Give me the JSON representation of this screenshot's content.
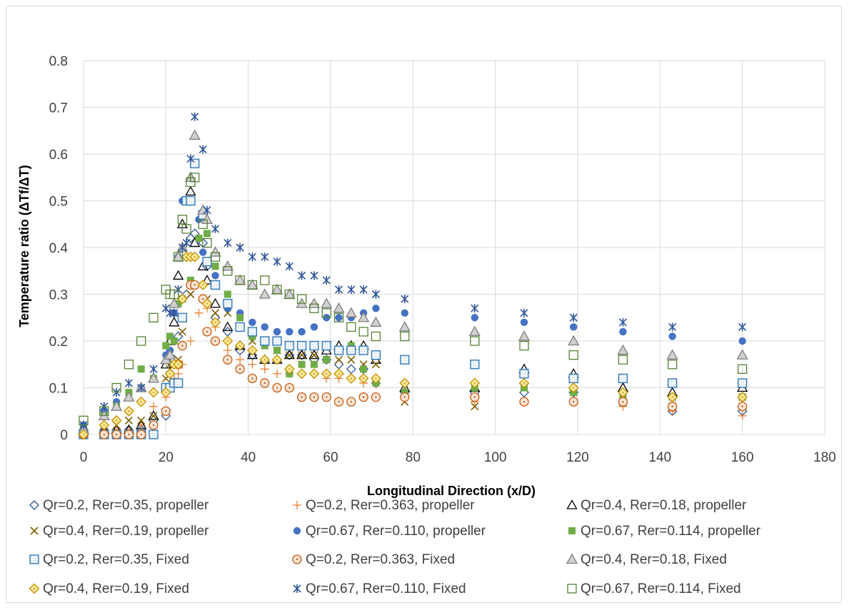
{
  "chart_data": {
    "type": "scatter",
    "title": "",
    "xlabel": "Longitudinal Direction (x/D)",
    "ylabel": "Temperature ratio (ΔTf/ΔT)",
    "xlim": [
      0,
      180
    ],
    "ylim": [
      0,
      0.8
    ],
    "x_ticks": [
      "0",
      "20",
      "40",
      "60",
      "80",
      "100",
      "120",
      "140",
      "160",
      "180"
    ],
    "y_ticks": [
      "0",
      "0.1",
      "0.2",
      "0.3",
      "0.4",
      "0.5",
      "0.6",
      "0.7",
      "0.8"
    ],
    "grid": true,
    "legend_position": "bottom",
    "series": [
      {
        "name": "Qr=0.2, Rer=0.35, propeller",
        "marker": "diamond-open",
        "color": "#2f5597",
        "x": [
          0,
          5,
          8,
          11,
          14,
          17,
          20,
          21,
          22,
          23,
          25,
          26,
          27,
          29,
          30,
          32,
          35,
          38,
          41,
          44,
          47,
          50,
          53,
          56,
          59,
          62,
          65,
          68,
          71,
          78,
          95,
          107,
          119,
          131,
          143,
          160
        ],
        "y": [
          0.01,
          0.01,
          0.01,
          0.01,
          0.01,
          0.03,
          0.04,
          0.1,
          0.16,
          0.21,
          0.3,
          0.42,
          0.43,
          0.41,
          0.36,
          0.25,
          0.22,
          0.18,
          0.17,
          0.16,
          0.16,
          0.17,
          0.17,
          0.16,
          0.16,
          0.15,
          0.14,
          0.14,
          0.11,
          0.09,
          0.09,
          0.09,
          0.09,
          0.07,
          0.05,
          0.05
        ]
      },
      {
        "name": "Q=0.2, Rer=0.363, propeller",
        "marker": "plus",
        "color": "#ed7d31",
        "x": [
          0,
          5,
          8,
          11,
          14,
          17,
          20,
          21,
          22,
          23,
          24,
          26,
          28,
          30,
          32,
          35,
          38,
          41,
          44,
          47,
          50,
          53,
          56,
          59,
          62,
          65,
          68,
          71,
          78,
          95,
          107,
          119,
          131,
          143,
          160
        ],
        "y": [
          0.01,
          0.01,
          0.01,
          0.01,
          0.02,
          0.06,
          0.08,
          0.1,
          0.12,
          0.13,
          0.15,
          0.2,
          0.26,
          0.27,
          0.23,
          0.18,
          0.16,
          0.15,
          0.14,
          0.13,
          0.13,
          0.13,
          0.13,
          0.12,
          0.12,
          0.12,
          0.11,
          0.11,
          0.08,
          0.07,
          0.07,
          0.07,
          0.06,
          0.05,
          0.04
        ]
      },
      {
        "name": "Qr=0.4, Rer=0.18, propeller",
        "marker": "triangle-open",
        "color": "#000000",
        "x": [
          0,
          5,
          8,
          11,
          14,
          17,
          20,
          21,
          22,
          23,
          24,
          26,
          27,
          29,
          30,
          32,
          35,
          38,
          41,
          44,
          47,
          50,
          53,
          56,
          59,
          62,
          65,
          68,
          71,
          78,
          95,
          107,
          119,
          131,
          143,
          160
        ],
        "y": [
          0.01,
          0.01,
          0.01,
          0.01,
          0.02,
          0.04,
          0.15,
          0.2,
          0.24,
          0.34,
          0.45,
          0.52,
          0.41,
          0.36,
          0.33,
          0.28,
          0.23,
          0.19,
          0.17,
          0.16,
          0.16,
          0.17,
          0.17,
          0.17,
          0.18,
          0.19,
          0.19,
          0.19,
          0.16,
          0.1,
          0.1,
          0.14,
          0.13,
          0.1,
          0.09,
          0.1
        ]
      },
      {
        "name": "Qr=0.4, Rer=0.19, propeller",
        "marker": "x",
        "color": "#7f6000",
        "x": [
          0,
          5,
          8,
          11,
          14,
          17,
          20,
          21,
          22,
          23,
          24,
          26,
          28,
          30,
          32,
          35,
          38,
          41,
          44,
          47,
          50,
          53,
          56,
          59,
          62,
          65,
          68,
          71,
          78,
          95,
          107,
          119,
          131,
          143,
          160
        ],
        "y": [
          0.01,
          0.01,
          0.02,
          0.03,
          0.03,
          0.04,
          0.12,
          0.14,
          0.15,
          0.16,
          0.22,
          0.3,
          0.32,
          0.29,
          0.26,
          0.26,
          0.23,
          0.2,
          0.19,
          0.18,
          0.17,
          0.17,
          0.17,
          0.16,
          0.16,
          0.16,
          0.15,
          0.15,
          0.07,
          0.06,
          0.1,
          0.09,
          0.07,
          0.06,
          0.08
        ]
      },
      {
        "name": "Qr=0.67, Rer=0.110, propeller",
        "marker": "circle-filled",
        "color": "#4472c4",
        "x": [
          0,
          5,
          8,
          11,
          14,
          17,
          20,
          21,
          22,
          23,
          24,
          25,
          26,
          28,
          29,
          30,
          32,
          35,
          38,
          41,
          44,
          47,
          50,
          53,
          56,
          59,
          62,
          65,
          68,
          71,
          78,
          95,
          107,
          119,
          131,
          143,
          160
        ],
        "y": [
          0.02,
          0.05,
          0.07,
          0.09,
          0.1,
          0.12,
          0.17,
          0.18,
          0.26,
          0.38,
          0.5,
          0.5,
          0.5,
          0.46,
          0.39,
          0.37,
          0.34,
          0.27,
          0.26,
          0.24,
          0.23,
          0.22,
          0.22,
          0.22,
          0.23,
          0.25,
          0.25,
          0.25,
          0.26,
          0.27,
          0.26,
          0.25,
          0.24,
          0.23,
          0.22,
          0.21,
          0.2
        ]
      },
      {
        "name": "Qr=0.67, Rer=0.114, propeller",
        "marker": "square-filled",
        "color": "#70ad47",
        "x": [
          0,
          5,
          8,
          11,
          14,
          17,
          20,
          21,
          22,
          23,
          24,
          26,
          28,
          30,
          32,
          35,
          38,
          41,
          44,
          47,
          50,
          53,
          56,
          59,
          62,
          65,
          68,
          71,
          78,
          95,
          107,
          119,
          131,
          143,
          160
        ],
        "y": [
          0.01,
          0.04,
          0.06,
          0.09,
          0.14,
          0.12,
          0.19,
          0.21,
          0.2,
          0.28,
          0.29,
          0.33,
          0.42,
          0.43,
          0.36,
          0.3,
          0.25,
          0.21,
          0.19,
          0.18,
          0.13,
          0.15,
          0.15,
          0.16,
          0.18,
          0.19,
          0.14,
          0.11,
          0.09,
          0.1,
          0.1,
          0.09,
          0.08,
          0.08,
          0.08
        ]
      },
      {
        "name": "Qr=0.2, Rer=0.35, Fixed",
        "marker": "square-dotted",
        "color": "#2e75b6",
        "x": [
          0,
          5,
          8,
          11,
          14,
          17,
          20,
          21,
          22,
          23,
          24,
          25,
          26,
          27,
          29,
          30,
          32,
          35,
          38,
          41,
          44,
          47,
          50,
          53,
          56,
          59,
          62,
          65,
          68,
          71,
          78,
          95,
          107,
          119,
          131,
          143,
          160
        ],
        "y": [
          0.0,
          0.0,
          0.0,
          0.0,
          0.0,
          0.0,
          0.1,
          0.1,
          0.11,
          0.11,
          0.25,
          0.5,
          0.5,
          0.58,
          0.47,
          0.37,
          0.32,
          0.28,
          0.23,
          0.22,
          0.2,
          0.2,
          0.19,
          0.19,
          0.19,
          0.19,
          0.18,
          0.18,
          0.18,
          0.17,
          0.16,
          0.15,
          0.13,
          0.12,
          0.12,
          0.11,
          0.11
        ]
      },
      {
        "name": "Q=0.2, Rer=0.363, Fixed",
        "marker": "circle-dotted",
        "color": "#c55a11",
        "x": [
          0,
          5,
          8,
          11,
          14,
          17,
          20,
          23,
          24,
          26,
          27,
          29,
          30,
          32,
          35,
          38,
          41,
          44,
          47,
          50,
          53,
          56,
          59,
          62,
          65,
          68,
          71,
          78,
          95,
          107,
          119,
          131,
          143,
          160
        ],
        "y": [
          0.0,
          0.0,
          0.0,
          0.0,
          0.0,
          0.02,
          0.05,
          0.15,
          0.19,
          0.32,
          0.32,
          0.29,
          0.22,
          0.2,
          0.16,
          0.14,
          0.12,
          0.11,
          0.1,
          0.1,
          0.08,
          0.08,
          0.08,
          0.07,
          0.07,
          0.08,
          0.08,
          0.08,
          0.08,
          0.07,
          0.07,
          0.07,
          0.06,
          0.06
        ]
      },
      {
        "name": "Qr=0.4, Rer=0.18, Fixed",
        "marker": "triangle-dotted",
        "color": "#7f7f7f",
        "x": [
          0,
          5,
          8,
          11,
          14,
          17,
          20,
          21,
          22,
          23,
          24,
          26,
          27,
          29,
          30,
          32,
          35,
          38,
          41,
          44,
          47,
          50,
          53,
          56,
          59,
          62,
          65,
          68,
          71,
          78,
          95,
          107,
          119,
          131,
          143,
          160
        ],
        "y": [
          0.01,
          0.04,
          0.06,
          0.08,
          0.1,
          0.12,
          0.16,
          0.17,
          0.28,
          0.38,
          0.4,
          0.55,
          0.64,
          0.48,
          0.46,
          0.39,
          0.36,
          0.33,
          0.32,
          0.3,
          0.31,
          0.3,
          0.28,
          0.28,
          0.28,
          0.27,
          0.26,
          0.25,
          0.24,
          0.23,
          0.22,
          0.21,
          0.2,
          0.18,
          0.17,
          0.17
        ]
      },
      {
        "name": "Qr=0.4, Rer=0.19, Fixed",
        "marker": "diamond-dotted",
        "color": "#bf9000",
        "x": [
          0,
          5,
          8,
          11,
          14,
          17,
          20,
          21,
          22,
          23,
          24,
          25,
          26,
          27,
          29,
          30,
          32,
          35,
          38,
          41,
          44,
          47,
          50,
          53,
          56,
          59,
          62,
          65,
          68,
          71,
          78,
          95,
          107,
          119,
          131,
          143,
          160
        ],
        "y": [
          0.0,
          0.02,
          0.03,
          0.05,
          0.07,
          0.09,
          0.09,
          0.13,
          0.15,
          0.15,
          0.29,
          0.38,
          0.38,
          0.38,
          0.32,
          0.28,
          0.24,
          0.2,
          0.19,
          0.18,
          0.16,
          0.16,
          0.14,
          0.13,
          0.13,
          0.13,
          0.13,
          0.12,
          0.12,
          0.12,
          0.11,
          0.11,
          0.11,
          0.1,
          0.09,
          0.08,
          0.08
        ]
      },
      {
        "name": "Qr=0.67, Rer=0.110, Fixed",
        "marker": "asterisk",
        "color": "#2f5597",
        "x": [
          0,
          5,
          8,
          11,
          14,
          17,
          20,
          21,
          22,
          23,
          24,
          25,
          26,
          27,
          29,
          30,
          32,
          35,
          38,
          41,
          44,
          47,
          50,
          53,
          56,
          59,
          62,
          65,
          68,
          71,
          78,
          95,
          107,
          119,
          131,
          143,
          160
        ],
        "y": [
          0.02,
          0.06,
          0.09,
          0.11,
          0.1,
          0.14,
          0.27,
          0.26,
          0.26,
          0.31,
          0.4,
          0.41,
          0.59,
          0.68,
          0.61,
          0.48,
          0.44,
          0.41,
          0.4,
          0.38,
          0.38,
          0.37,
          0.36,
          0.34,
          0.34,
          0.33,
          0.31,
          0.31,
          0.31,
          0.3,
          0.29,
          0.27,
          0.26,
          0.25,
          0.24,
          0.23,
          0.23
        ]
      },
      {
        "name": "Qr=0.67, Rer=0.114, Fixed",
        "marker": "square-open",
        "color": "#548235",
        "x": [
          0,
          5,
          8,
          11,
          14,
          17,
          20,
          21,
          22,
          23,
          24,
          25,
          26,
          27,
          29,
          30,
          32,
          35,
          38,
          41,
          44,
          47,
          50,
          53,
          56,
          59,
          62,
          65,
          68,
          71,
          78,
          95,
          107,
          119,
          131,
          143,
          160
        ],
        "y": [
          0.03,
          0.05,
          0.1,
          0.15,
          0.2,
          0.25,
          0.31,
          0.3,
          0.3,
          0.38,
          0.46,
          0.44,
          0.54,
          0.55,
          0.45,
          0.41,
          0.38,
          0.35,
          0.33,
          0.32,
          0.33,
          0.31,
          0.3,
          0.29,
          0.27,
          0.26,
          0.25,
          0.23,
          0.22,
          0.21,
          0.21,
          0.2,
          0.19,
          0.17,
          0.16,
          0.15,
          0.14
        ]
      }
    ]
  }
}
